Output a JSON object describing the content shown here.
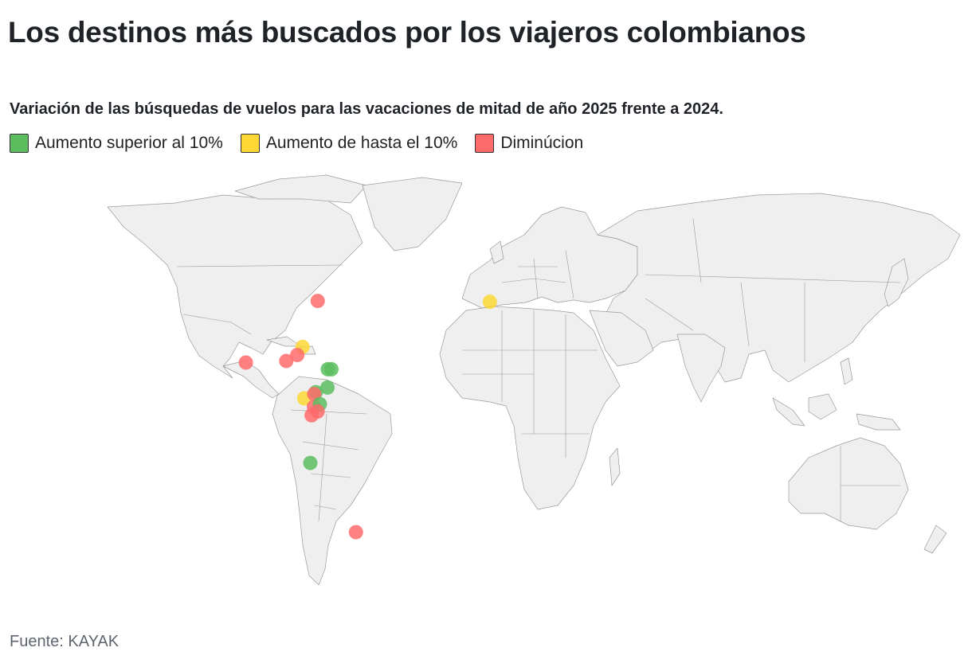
{
  "title": "Los destinos más buscados por los viajeros colombianos",
  "subtitle": "Variación de las búsquedas de vuelos para las vacaciones de mitad de año 2025 frente a 2024.",
  "legend": [
    {
      "label": "Aumento superior al 10%",
      "color": "#5cbd5f"
    },
    {
      "label": "Aumento de hasta el 10%",
      "color": "#fdd835"
    },
    {
      "label": "Diminúcion",
      "color": "#ff6b6b"
    }
  ],
  "source": "Fuente: KAYAK",
  "map": {
    "land_color": "#efefef",
    "border_color": "#8a8a8a",
    "points": [
      {
        "lat": 40.71,
        "lon": -74.0,
        "category": 2
      },
      {
        "lat": 40.42,
        "lon": -3.7,
        "category": 1
      },
      {
        "lat": 25.76,
        "lon": -80.19,
        "category": 1
      },
      {
        "lat": 23.11,
        "lon": -82.37,
        "category": 2
      },
      {
        "lat": 20.66,
        "lon": -103.35,
        "category": 2
      },
      {
        "lat": 21.16,
        "lon": -86.85,
        "category": 2
      },
      {
        "lat": 18.47,
        "lon": -69.9,
        "category": 0
      },
      {
        "lat": 18.47,
        "lon": -68.4,
        "category": 0
      },
      {
        "lat": 12.52,
        "lon": -70.03,
        "category": 0
      },
      {
        "lat": 8.98,
        "lon": -79.52,
        "category": 1
      },
      {
        "lat": 11.0,
        "lon": -74.8,
        "category": 0
      },
      {
        "lat": 10.39,
        "lon": -75.48,
        "category": 2
      },
      {
        "lat": 6.24,
        "lon": -75.58,
        "category": 2
      },
      {
        "lat": 7.12,
        "lon": -73.12,
        "category": 0
      },
      {
        "lat": 4.71,
        "lon": -74.07,
        "category": 2
      },
      {
        "lat": 3.45,
        "lon": -76.53,
        "category": 2
      },
      {
        "lat": -12.05,
        "lon": -77.04,
        "category": 0
      },
      {
        "lat": -34.6,
        "lon": -58.38,
        "category": 2
      }
    ]
  }
}
